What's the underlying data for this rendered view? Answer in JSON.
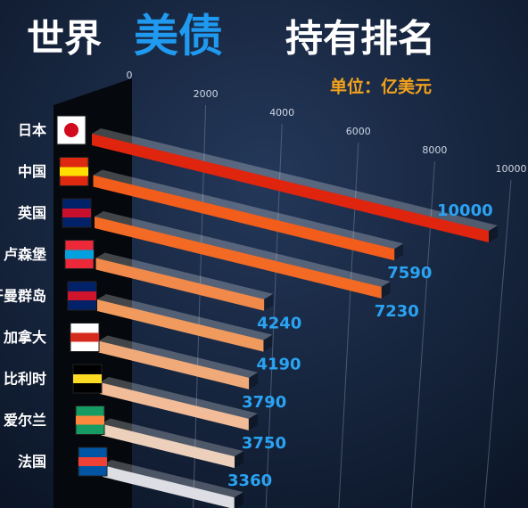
{
  "chart_data": {
    "type": "bar3d",
    "title_parts": [
      "世界",
      "美债",
      "持有排名"
    ],
    "unit": "单位：亿美元",
    "categories": [
      "日本",
      "中国",
      "英国",
      "卢森堡",
      "开曼群岛",
      "加拿大",
      "比利时",
      "爱尔兰",
      "法国"
    ],
    "values": [
      10000,
      7590,
      7230,
      4240,
      4190,
      3790,
      3750,
      3360,
      3320
    ],
    "colors": [
      "#e0250e",
      "#f25d1c",
      "#f36a25",
      "#f0894a",
      "#f09a5e",
      "#f0aa7a",
      "#f2bc98",
      "#ecd0bc",
      "#dcdee4"
    ],
    "xlim": [
      0,
      10000
    ],
    "xticks": [
      0,
      2000,
      4000,
      6000,
      8000,
      10000
    ],
    "grid": true
  }
}
